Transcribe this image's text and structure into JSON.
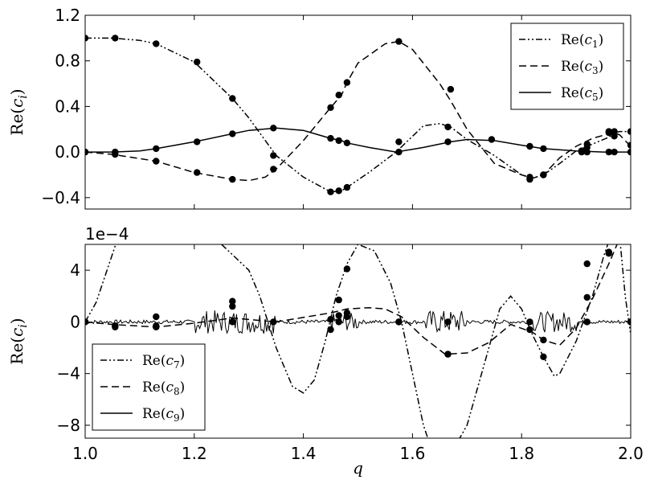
{
  "chart_data": [
    {
      "type": "line",
      "ylabel": "Re(c_i)",
      "xlim": [
        1.0,
        2.0
      ],
      "ylim": [
        -0.5,
        1.2
      ],
      "x_ticks": [
        "1.0",
        "1.2",
        "1.4",
        "1.6",
        "1.8",
        "2.0"
      ],
      "y_ticks": [
        {
          "v": 1.2,
          "label": "1.2"
        },
        {
          "v": 0.8,
          "label": "0.8"
        },
        {
          "v": 0.4,
          "label": "0.4"
        },
        {
          "v": 0.0,
          "label": "0.0"
        },
        {
          "v": -0.4,
          "label": "−0.4"
        }
      ],
      "legend_position": "top-right",
      "series": [
        {
          "name": "Re(c₁)",
          "base": "Re(c",
          "sub": "1",
          "style": "dashdotdot",
          "line": [
            [
              1.0,
              1.0
            ],
            [
              1.05,
              1.0
            ],
            [
              1.1,
              0.98
            ],
            [
              1.13,
              0.95
            ],
            [
              1.2,
              0.79
            ],
            [
              1.27,
              0.47
            ],
            [
              1.3,
              0.3
            ],
            [
              1.35,
              -0.03
            ],
            [
              1.4,
              -0.22
            ],
            [
              1.45,
              -0.35
            ],
            [
              1.47,
              -0.34
            ],
            [
              1.48,
              -0.31
            ],
            [
              1.52,
              -0.18
            ],
            [
              1.57,
              0.0
            ],
            [
              1.62,
              0.23
            ],
            [
              1.65,
              0.25
            ],
            [
              1.67,
              0.22
            ],
            [
              1.7,
              0.11
            ],
            [
              1.75,
              -0.03
            ],
            [
              1.8,
              -0.2
            ],
            [
              1.82,
              -0.23
            ],
            [
              1.84,
              -0.2
            ],
            [
              1.87,
              -0.1
            ],
            [
              1.9,
              0.01
            ],
            [
              1.93,
              0.07
            ],
            [
              1.96,
              0.13
            ],
            [
              1.97,
              0.17
            ],
            [
              1.98,
              0.18
            ],
            [
              2.0,
              0.18
            ]
          ],
          "points": [
            [
              1.0,
              1.0
            ],
            [
              1.055,
              1.0
            ],
            [
              1.13,
              0.95
            ],
            [
              1.205,
              0.79
            ],
            [
              1.27,
              0.47
            ],
            [
              1.345,
              -0.03
            ],
            [
              1.45,
              -0.35
            ],
            [
              1.465,
              -0.34
            ],
            [
              1.48,
              -0.31
            ],
            [
              1.575,
              0.09
            ],
            [
              1.665,
              0.22
            ],
            [
              1.815,
              -0.22
            ],
            [
              1.84,
              -0.2
            ],
            [
              1.91,
              0.01
            ],
            [
              1.92,
              0.07
            ],
            [
              1.96,
              0.18
            ],
            [
              1.97,
              0.18
            ],
            [
              2.0,
              0.18
            ]
          ]
        },
        {
          "name": "Re(c₃)",
          "base": "Re(c",
          "sub": "3",
          "style": "dashed",
          "line": [
            [
              1.0,
              0.0
            ],
            [
              1.05,
              -0.02
            ],
            [
              1.13,
              -0.08
            ],
            [
              1.2,
              -0.18
            ],
            [
              1.27,
              -0.24
            ],
            [
              1.3,
              -0.25
            ],
            [
              1.33,
              -0.22
            ],
            [
              1.35,
              -0.15
            ],
            [
              1.4,
              0.1
            ],
            [
              1.45,
              0.39
            ],
            [
              1.47,
              0.5
            ],
            [
              1.48,
              0.61
            ],
            [
              1.5,
              0.78
            ],
            [
              1.55,
              0.95
            ],
            [
              1.575,
              0.97
            ],
            [
              1.6,
              0.9
            ],
            [
              1.65,
              0.6
            ],
            [
              1.67,
              0.45
            ],
            [
              1.7,
              0.2
            ],
            [
              1.75,
              -0.1
            ],
            [
              1.8,
              -0.2
            ],
            [
              1.82,
              -0.23
            ],
            [
              1.84,
              -0.2
            ],
            [
              1.87,
              -0.05
            ],
            [
              1.9,
              0.05
            ],
            [
              1.93,
              0.12
            ],
            [
              1.96,
              0.16
            ],
            [
              1.97,
              0.17
            ],
            [
              1.98,
              0.15
            ],
            [
              2.0,
              0.05
            ]
          ],
          "points": [
            [
              1.0,
              0.0
            ],
            [
              1.055,
              -0.02
            ],
            [
              1.13,
              -0.08
            ],
            [
              1.205,
              -0.18
            ],
            [
              1.27,
              -0.24
            ],
            [
              1.345,
              -0.15
            ],
            [
              1.45,
              0.39
            ],
            [
              1.465,
              0.5
            ],
            [
              1.48,
              0.61
            ],
            [
              1.575,
              0.97
            ],
            [
              1.67,
              0.55
            ],
            [
              1.815,
              -0.24
            ],
            [
              1.84,
              -0.2
            ],
            [
              1.91,
              0.01
            ],
            [
              1.92,
              0.04
            ],
            [
              1.96,
              0.17
            ],
            [
              1.97,
              0.14
            ],
            [
              2.0,
              0.06
            ]
          ]
        },
        {
          "name": "Re(c₅)",
          "base": "Re(c",
          "sub": "5",
          "style": "solid",
          "line": [
            [
              1.0,
              0.0
            ],
            [
              1.05,
              0.0
            ],
            [
              1.1,
              0.01
            ],
            [
              1.13,
              0.03
            ],
            [
              1.2,
              0.09
            ],
            [
              1.27,
              0.16
            ],
            [
              1.3,
              0.19
            ],
            [
              1.35,
              0.21
            ],
            [
              1.4,
              0.19
            ],
            [
              1.45,
              0.12
            ],
            [
              1.47,
              0.1
            ],
            [
              1.48,
              0.08
            ],
            [
              1.52,
              0.04
            ],
            [
              1.57,
              0.0
            ],
            [
              1.62,
              0.04
            ],
            [
              1.67,
              0.09
            ],
            [
              1.7,
              0.11
            ],
            [
              1.75,
              0.1
            ],
            [
              1.8,
              0.06
            ],
            [
              1.84,
              0.03
            ],
            [
              1.9,
              0.01
            ],
            [
              1.95,
              0.0
            ],
            [
              2.0,
              0.0
            ]
          ],
          "points": [
            [
              1.0,
              0.0
            ],
            [
              1.055,
              0.0
            ],
            [
              1.13,
              0.03
            ],
            [
              1.205,
              0.09
            ],
            [
              1.27,
              0.16
            ],
            [
              1.345,
              0.21
            ],
            [
              1.45,
              0.12
            ],
            [
              1.465,
              0.1
            ],
            [
              1.48,
              0.08
            ],
            [
              1.575,
              0.0
            ],
            [
              1.665,
              0.09
            ],
            [
              1.745,
              0.11
            ],
            [
              1.815,
              0.05
            ],
            [
              1.84,
              0.03
            ],
            [
              1.91,
              0.0
            ],
            [
              1.92,
              0.0
            ],
            [
              1.96,
              0.0
            ],
            [
              1.97,
              0.0
            ],
            [
              2.0,
              0.0
            ]
          ]
        }
      ]
    },
    {
      "type": "line",
      "ylabel": "Re(c_i)",
      "xlabel": "q",
      "offset_label": "1e−4",
      "xlim": [
        1.0,
        2.0
      ],
      "ylim": [
        -9,
        6
      ],
      "x_ticks": [
        "1.0",
        "1.2",
        "1.4",
        "1.6",
        "1.8",
        "2.0"
      ],
      "y_ticks": [
        {
          "v": 4,
          "label": "4"
        },
        {
          "v": 0,
          "label": "0"
        },
        {
          "v": -4,
          "label": "−4"
        },
        {
          "v": -8,
          "label": "−8"
        }
      ],
      "legend_position": "bottom-left",
      "series": [
        {
          "name": "Re(c₇)",
          "base": "Re(c",
          "sub": "7",
          "style": "dashdotdot",
          "line": [
            [
              1.0,
              0.0
            ],
            [
              1.02,
              1.5
            ],
            [
              1.04,
              4.0
            ],
            [
              1.06,
              6.5
            ],
            [
              1.12,
              9.0
            ],
            [
              1.2,
              8.0
            ],
            [
              1.3,
              4.0
            ],
            [
              1.32,
              2.0
            ],
            [
              1.35,
              -2.0
            ],
            [
              1.38,
              -5.0
            ],
            [
              1.4,
              -5.5
            ],
            [
              1.42,
              -4.5
            ],
            [
              1.44,
              -1.5
            ],
            [
              1.46,
              2.0
            ],
            [
              1.48,
              4.5
            ],
            [
              1.5,
              6.0
            ],
            [
              1.53,
              5.5
            ],
            [
              1.56,
              3.0
            ],
            [
              1.58,
              0.0
            ],
            [
              1.6,
              -4.0
            ],
            [
              1.62,
              -8.0
            ],
            [
              1.64,
              -10.5
            ],
            [
              1.66,
              -11.0
            ],
            [
              1.7,
              -8.0
            ],
            [
              1.74,
              -2.0
            ],
            [
              1.76,
              1.0
            ],
            [
              1.78,
              2.0
            ],
            [
              1.8,
              1.0
            ],
            [
              1.82,
              -1.0
            ],
            [
              1.84,
              -2.7
            ],
            [
              1.86,
              -4.2
            ],
            [
              1.87,
              -4.0
            ],
            [
              1.9,
              -1.5
            ],
            [
              1.93,
              2.0
            ],
            [
              1.95,
              5.0
            ],
            [
              1.97,
              7.5
            ],
            [
              1.98,
              6.5
            ],
            [
              1.99,
              2.0
            ],
            [
              2.0,
              -1.0
            ]
          ],
          "points": [
            [
              1.0,
              0.0
            ],
            [
              1.055,
              -0.4
            ],
            [
              1.13,
              -0.3
            ],
            [
              1.27,
              1.2
            ],
            [
              1.45,
              -0.6
            ],
            [
              1.465,
              0.5
            ],
            [
              1.48,
              4.1
            ],
            [
              1.575,
              0.0
            ],
            [
              1.665,
              -2.5
            ],
            [
              1.815,
              -0.6
            ],
            [
              1.84,
              -2.7
            ],
            [
              1.92,
              4.5
            ],
            [
              1.96,
              5.4
            ],
            [
              2.0,
              0.0
            ]
          ]
        },
        {
          "name": "Re(c₈)",
          "base": "Re(c",
          "sub": "8",
          "style": "dashed",
          "line": [
            [
              1.0,
              0.0
            ],
            [
              1.05,
              -0.2
            ],
            [
              1.13,
              -0.4
            ],
            [
              1.2,
              -0.1
            ],
            [
              1.27,
              0.3
            ],
            [
              1.35,
              0.0
            ],
            [
              1.45,
              0.7
            ],
            [
              1.48,
              1.0
            ],
            [
              1.52,
              1.1
            ],
            [
              1.55,
              1.0
            ],
            [
              1.58,
              0.4
            ],
            [
              1.62,
              -1.2
            ],
            [
              1.66,
              -2.5
            ],
            [
              1.7,
              -2.4
            ],
            [
              1.74,
              -1.6
            ],
            [
              1.78,
              -0.2
            ],
            [
              1.82,
              -0.8
            ],
            [
              1.84,
              -1.4
            ],
            [
              1.87,
              -1.8
            ],
            [
              1.9,
              -0.5
            ],
            [
              1.93,
              1.8
            ],
            [
              1.96,
              4.5
            ],
            [
              1.98,
              6.5
            ],
            [
              2.0,
              7.0
            ]
          ],
          "points": [
            [
              1.0,
              0.0
            ],
            [
              1.055,
              -0.3
            ],
            [
              1.13,
              -0.4
            ],
            [
              1.27,
              1.6
            ],
            [
              1.465,
              1.7
            ],
            [
              1.48,
              0.7
            ],
            [
              1.665,
              -2.5
            ],
            [
              1.84,
              -1.4
            ],
            [
              1.92,
              1.9
            ],
            [
              1.96,
              5.3
            ],
            [
              2.0,
              0.0
            ]
          ]
        },
        {
          "name": "Re(c₉)",
          "base": "Re(c",
          "sub": "9",
          "style": "noisy",
          "line": [
            [
              1.0,
              0.0
            ],
            [
              1.2,
              0.0
            ],
            [
              1.4,
              0.0
            ],
            [
              1.6,
              0.0
            ],
            [
              1.8,
              0.0
            ],
            [
              2.0,
              0.0
            ]
          ],
          "points": [
            [
              1.0,
              0.0
            ],
            [
              1.13,
              0.4
            ],
            [
              1.27,
              0.0
            ],
            [
              1.345,
              0.0
            ],
            [
              1.45,
              0.2
            ],
            [
              1.465,
              0.0
            ],
            [
              1.48,
              0.4
            ],
            [
              1.575,
              0.0
            ],
            [
              1.665,
              0.0
            ],
            [
              1.815,
              0.0
            ],
            [
              1.92,
              0.0
            ],
            [
              2.0,
              0.0
            ]
          ]
        }
      ]
    }
  ]
}
